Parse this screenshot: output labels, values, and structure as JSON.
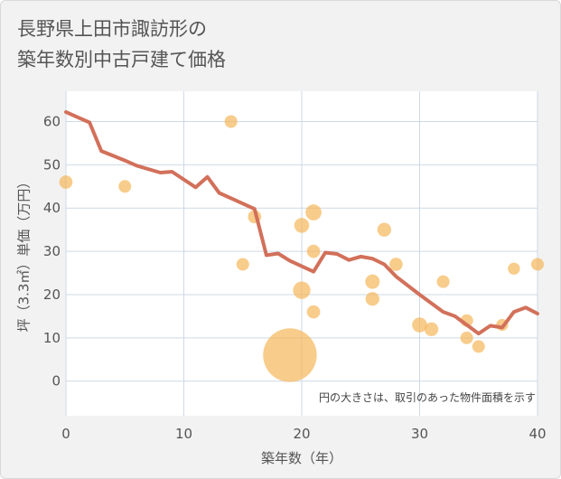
{
  "title_line1": "長野県上田市諏訪形の",
  "title_line2": "築年数別中古戸建て価格",
  "colors": {
    "background": "#f2f2f2",
    "plot_background": "#ffffff",
    "grid": "#cdd9e6",
    "line": "#d2705a",
    "bubble": "#f5b75a"
  },
  "chart_data": {
    "type": "scatter",
    "xlabel": "築年数（年）",
    "ylabel": "坪（3.3㎡）単価（万円）",
    "xlim": [
      0,
      40
    ],
    "ylim": [
      -8,
      67
    ],
    "xticks": [
      0,
      10,
      20,
      30,
      40
    ],
    "yticks": [
      0,
      10,
      20,
      30,
      40,
      50,
      60
    ],
    "grid": true,
    "note": "円の大きさは、取引のあった物件面積を示す",
    "line_series": {
      "x": [
        0,
        2,
        3,
        5,
        6,
        8,
        9,
        11,
        12,
        13,
        16,
        17,
        18,
        19,
        21,
        22,
        23,
        24,
        25,
        26,
        27,
        28,
        30,
        32,
        33,
        34,
        35,
        36,
        37,
        38,
        39,
        40
      ],
      "y": [
        62.2,
        59.8,
        53.2,
        51.0,
        49.8,
        48.2,
        48.4,
        44.8,
        47.2,
        43.5,
        39.8,
        29.1,
        29.5,
        27.8,
        25.3,
        29.7,
        29.4,
        28.0,
        28.8,
        28.3,
        27.0,
        24.2,
        20.0,
        16.0,
        15.0,
        13.0,
        11.0,
        12.8,
        12.4,
        16.0,
        17.0,
        15.6
      ]
    },
    "bubbles": [
      {
        "x": 0,
        "y": 46,
        "size": 1.1
      },
      {
        "x": 5,
        "y": 45,
        "size": 1.0
      },
      {
        "x": 14,
        "y": 60,
        "size": 1.0
      },
      {
        "x": 15,
        "y": 27,
        "size": 1.0
      },
      {
        "x": 16,
        "y": 38,
        "size": 1.1
      },
      {
        "x": 19,
        "y": 6,
        "size": 18
      },
      {
        "x": 20,
        "y": 36,
        "size": 1.4
      },
      {
        "x": 20,
        "y": 21,
        "size": 1.9
      },
      {
        "x": 21,
        "y": 39,
        "size": 1.6
      },
      {
        "x": 21,
        "y": 30,
        "size": 1.1
      },
      {
        "x": 21,
        "y": 16,
        "size": 1.1
      },
      {
        "x": 26,
        "y": 23,
        "size": 1.3
      },
      {
        "x": 26,
        "y": 19,
        "size": 1.2
      },
      {
        "x": 27,
        "y": 35,
        "size": 1.2
      },
      {
        "x": 28,
        "y": 27,
        "size": 1.1
      },
      {
        "x": 30,
        "y": 13,
        "size": 1.4
      },
      {
        "x": 31,
        "y": 12,
        "size": 1.2
      },
      {
        "x": 32,
        "y": 23,
        "size": 1.0
      },
      {
        "x": 34,
        "y": 14,
        "size": 1.0
      },
      {
        "x": 34,
        "y": 10,
        "size": 1.0
      },
      {
        "x": 35,
        "y": 8,
        "size": 1.0
      },
      {
        "x": 37,
        "y": 13,
        "size": 0.9
      },
      {
        "x": 38,
        "y": 26,
        "size": 0.9
      },
      {
        "x": 40,
        "y": 27,
        "size": 1.0
      }
    ]
  }
}
